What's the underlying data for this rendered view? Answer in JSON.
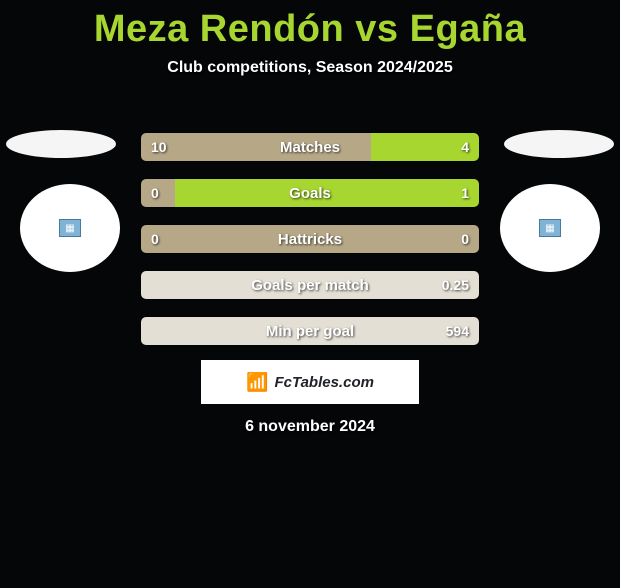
{
  "colors": {
    "background": "#040608",
    "accent": "#a6d62f",
    "text_light": "#ffffff",
    "bar_neutral": "#b6a887",
    "bar_green": "#a6d62f",
    "bar_light": "#e3dfd4",
    "attrib_bg": "#ffffff",
    "attrib_text": "#202328",
    "badge_bg": "#7fb4d6"
  },
  "title": "Meza Rendón vs Egaña",
  "subtitle": "Club competitions, Season 2024/2025",
  "stats": [
    {
      "label": "Matches",
      "left_value": "10",
      "right_value": "4",
      "left_pct": 68,
      "right_pct": 32,
      "left_color": "#b6a887",
      "right_color": "#a6d62f"
    },
    {
      "label": "Goals",
      "left_value": "0",
      "right_value": "1",
      "left_pct": 10,
      "right_pct": 90,
      "left_color": "#b6a887",
      "right_color": "#a6d62f"
    },
    {
      "label": "Hattricks",
      "left_value": "0",
      "right_value": "0",
      "left_pct": 50,
      "right_pct": 50,
      "left_color": "#b6a887",
      "right_color": "#b6a887"
    },
    {
      "label": "Goals per match",
      "left_value": "",
      "right_value": "0.25",
      "left_pct": 0,
      "right_pct": 100,
      "left_color": "#e3dfd4",
      "right_color": "#e3dfd4"
    },
    {
      "label": "Min per goal",
      "left_value": "",
      "right_value": "594",
      "left_pct": 0,
      "right_pct": 100,
      "left_color": "#e3dfd4",
      "right_color": "#e3dfd4"
    }
  ],
  "attribution": {
    "icon": "📶",
    "text": "FcTables.com"
  },
  "date": "6 november 2024",
  "side_badge_glyph": "▦"
}
